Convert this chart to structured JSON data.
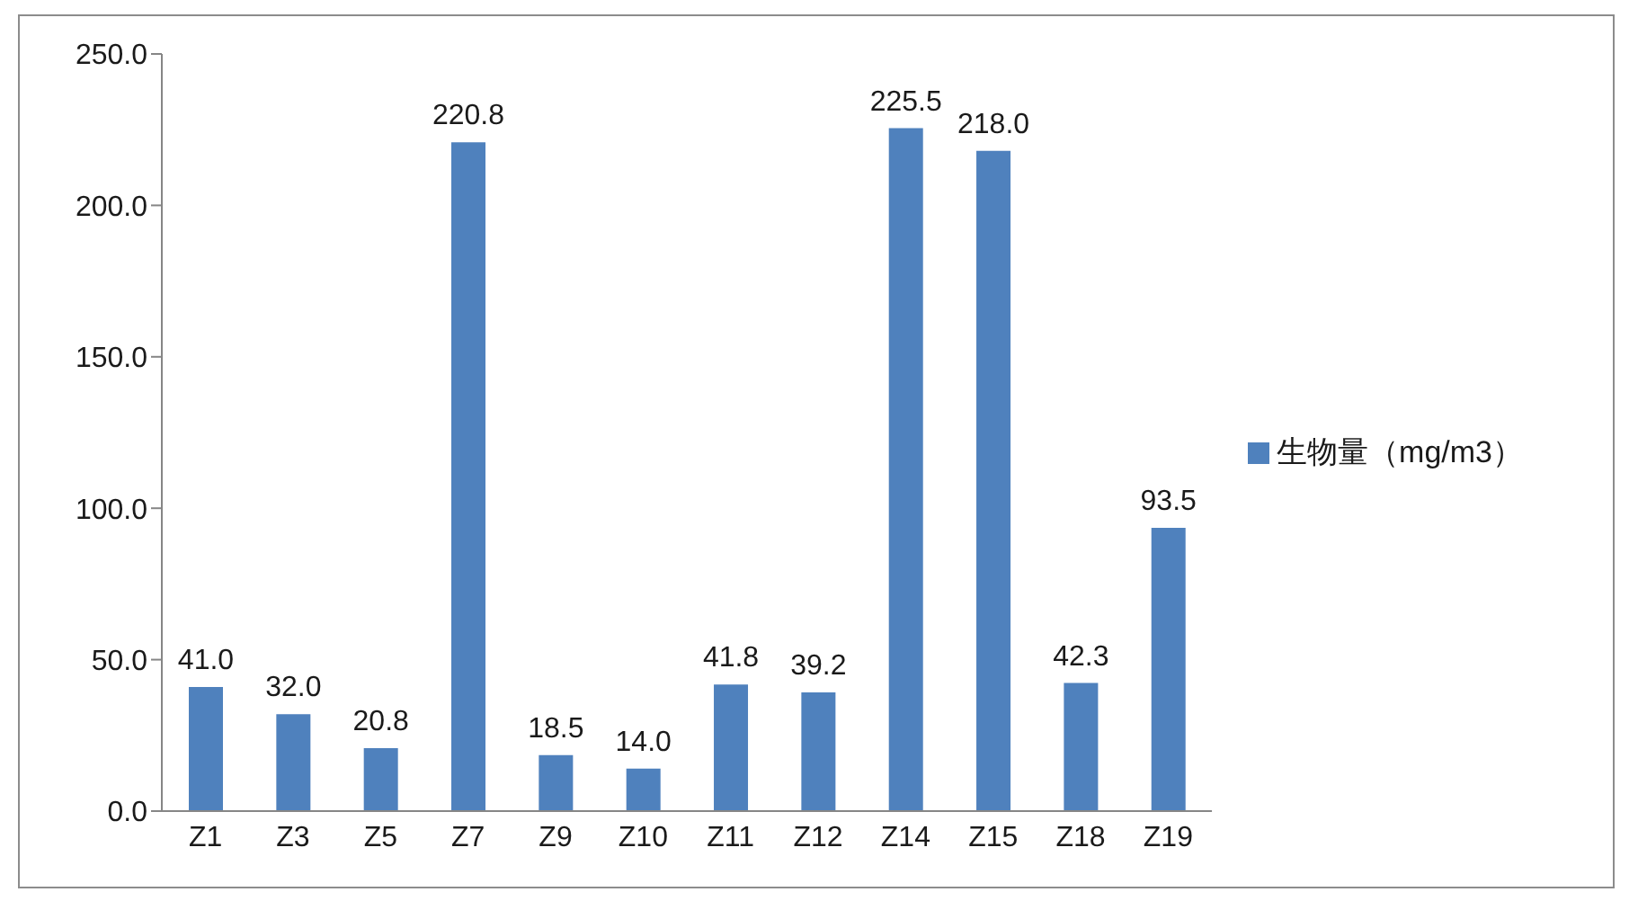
{
  "chart_data": {
    "type": "bar",
    "categories": [
      "Z1",
      "Z3",
      "Z5",
      "Z7",
      "Z9",
      "Z10",
      "Z11",
      "Z12",
      "Z14",
      "Z15",
      "Z18",
      "Z19"
    ],
    "series": [
      {
        "name": "生物量（mg/m3）",
        "color": "#4f81bd",
        "values": [
          41.0,
          32.0,
          20.8,
          220.8,
          18.5,
          14.0,
          41.8,
          39.2,
          225.5,
          218.0,
          42.3,
          93.5
        ],
        "value_labels": [
          "41.0",
          "32.0",
          "20.8",
          "220.8",
          "18.5",
          "14.0",
          "41.8",
          "39.2",
          "225.5",
          "218.0",
          "42.3",
          "93.5"
        ]
      }
    ],
    "ylim": [
      0,
      250
    ],
    "yticks": [
      {
        "value": 0,
        "label": "0.0"
      },
      {
        "value": 50,
        "label": "50.0"
      },
      {
        "value": 100,
        "label": "100.0"
      },
      {
        "value": 150,
        "label": "150.0"
      },
      {
        "value": 200,
        "label": "200.0"
      },
      {
        "value": 250,
        "label": "250.0"
      }
    ],
    "grid": false,
    "legend": "right"
  }
}
